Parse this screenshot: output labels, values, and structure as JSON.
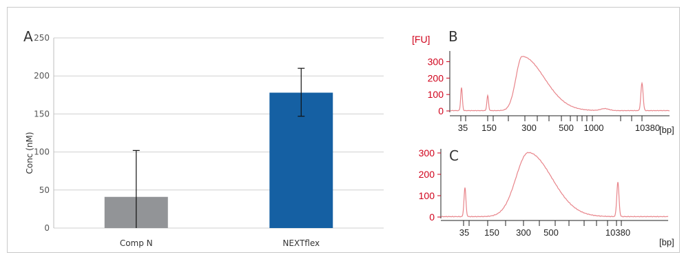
{
  "chart_data": [
    {
      "panel": "A",
      "type": "bar",
      "ylabel": "Conc (nM)",
      "ylim": [
        0,
        250
      ],
      "yticks": [
        0,
        50,
        100,
        150,
        200,
        250
      ],
      "categories": [
        "Comp N",
        "NEXTflex"
      ],
      "values": [
        41,
        178
      ],
      "errors": [
        [
          0,
          102
        ],
        [
          147,
          210
        ]
      ],
      "colors": [
        "#929497",
        "#1560a3"
      ],
      "grid": true
    },
    {
      "panel": "B",
      "type": "line",
      "y_unit_label": "[FU]",
      "ylim": [
        0,
        340
      ],
      "yticks": [
        0,
        100,
        200,
        300
      ],
      "x_tick_labels": [
        "35",
        "150",
        "300",
        "500",
        "1000",
        "10380"
      ],
      "x_unit_label": "[bp]",
      "line_color": "#e8848a",
      "peaks": [
        {
          "x": "35",
          "y": 140
        },
        {
          "x": "150",
          "y": 92
        },
        {
          "x": "300",
          "y": 335
        },
        {
          "x": "10380",
          "y": 168
        }
      ]
    },
    {
      "panel": "C",
      "type": "line",
      "ylim": [
        0,
        300
      ],
      "yticks": [
        0,
        100,
        200,
        300
      ],
      "x_tick_labels": [
        "35",
        "150",
        "300",
        "500",
        "10380"
      ],
      "x_unit_label": "[bp]",
      "line_color": "#e8848a",
      "peaks": [
        {
          "x": "35",
          "y": 135
        },
        {
          "x": "300",
          "y": 300
        },
        {
          "x": "10380",
          "y": 160
        }
      ]
    }
  ]
}
